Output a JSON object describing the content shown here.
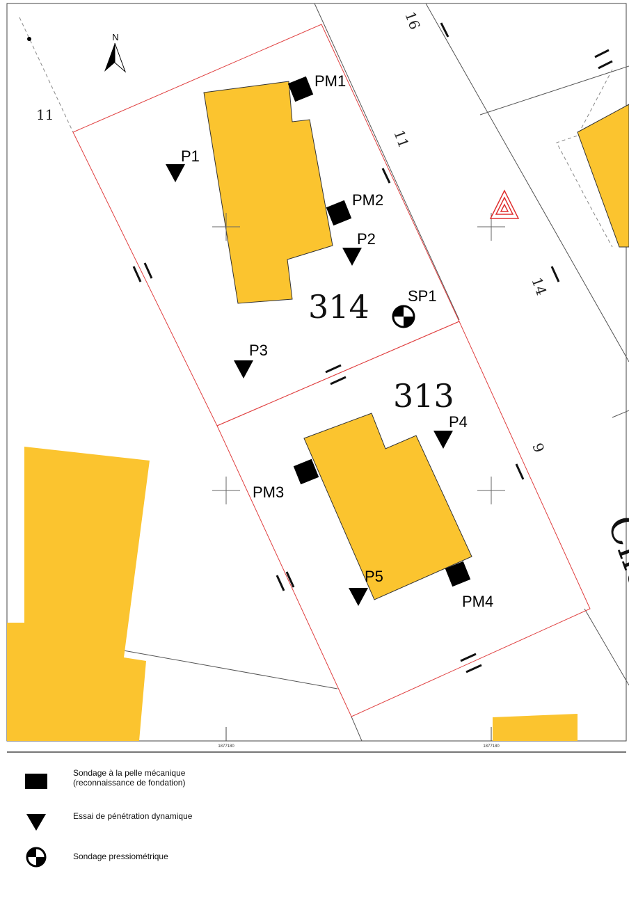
{
  "map": {
    "north_label": "N",
    "parcel_labels": {
      "p314": "314",
      "p313": "313"
    },
    "street_numbers": {
      "n16": "16",
      "n11_top": "11",
      "n11_left": "11",
      "n14": "14",
      "n9": "9"
    },
    "street_name_fragment": "Che",
    "grid_ticks": {
      "left": "1877180",
      "right": "1877180"
    },
    "points": {
      "pm1": "PM1",
      "pm2": "PM2",
      "pm3": "PM3",
      "pm4": "PM4",
      "p1": "P1",
      "p2": "P2",
      "p3": "P3",
      "p4": "P4",
      "p5": "P5",
      "sp1": "SP1"
    },
    "colors": {
      "building": "#fbc42f",
      "parcel_boundary": "#e04040",
      "cadastral_line": "#555555",
      "symbol": "#000000",
      "triangle_marker": "#e03030"
    }
  },
  "legend": {
    "items": [
      {
        "icon": "black-square-icon",
        "text": "Sondage à la pelle mécanique\n(reconnaissance de fondation)"
      },
      {
        "icon": "down-triangle-icon",
        "text": "Essai de pénétration dynamique"
      },
      {
        "icon": "pressiometer-icon",
        "text": "Sondage pressiométrique"
      }
    ]
  }
}
